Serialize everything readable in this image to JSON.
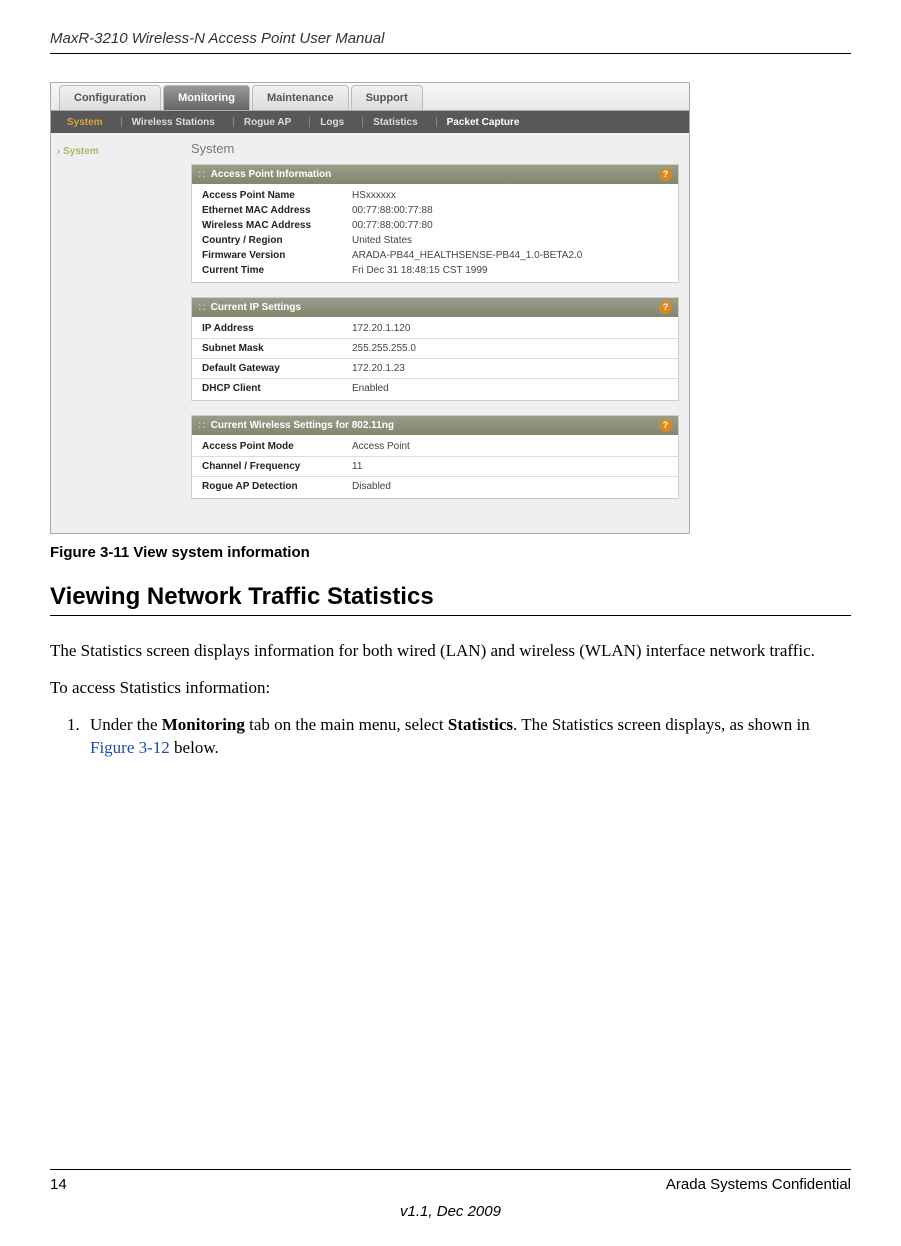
{
  "doc": {
    "header": "MaxR-3210 Wireless-N Access Point User Manual",
    "caption": "Figure 3-11  View system information",
    "h2": "Viewing Network Traffic Statistics",
    "para1": "The Statistics screen displays information for both wired (LAN) and wireless (WLAN) interface network traffic.",
    "para2": "To access Statistics information:",
    "step1_pre": "Under the ",
    "step1_b1": "Monitoring",
    "step1_mid": " tab on the main menu, select ",
    "step1_b2": "Statistics",
    "step1_post": ". The Statistics screen displays, as shown in ",
    "step1_link": "Figure 3-12",
    "step1_end": " below.",
    "page_num": "14",
    "conf": "Arada Systems Confidential",
    "version": "v1.1, Dec 2009"
  },
  "ui": {
    "tabs": {
      "t1": "Configuration",
      "t2": "Monitoring",
      "t3": "Maintenance",
      "t4": "Support"
    },
    "subtabs": {
      "s1": "System",
      "s2": "Wireless Stations",
      "s3": "Rogue AP",
      "s4": "Logs",
      "s5": "Statistics",
      "s6": "Packet Capture"
    },
    "side": "System",
    "panel_title": "System",
    "block1": {
      "title": "Access Point Information",
      "r1k": "Access Point Name",
      "r1v": "HSxxxxxx",
      "r2k": "Ethernet MAC Address",
      "r2v": "00:77:88:00:77:88",
      "r3k": "Wireless MAC Address",
      "r3v": "00:77:88:00:77:80",
      "r4k": "Country / Region",
      "r4v": "United States",
      "r5k": "Firmware Version",
      "r5v": "ARADA-PB44_HEALTHSENSE-PB44_1.0-BETA2.0",
      "r6k": "Current Time",
      "r6v": "Fri Dec 31 18:48:15 CST 1999"
    },
    "block2": {
      "title": "Current IP Settings",
      "r1k": "IP Address",
      "r1v": "172.20.1.120",
      "r2k": "Subnet Mask",
      "r2v": "255.255.255.0",
      "r3k": "Default Gateway",
      "r3v": "172.20.1.23",
      "r4k": "DHCP Client",
      "r4v": "Enabled"
    },
    "block3": {
      "title": "Current Wireless Settings for 802.11ng",
      "r1k": "Access Point Mode",
      "r1v": "Access Point",
      "r2k": "Channel / Frequency",
      "r2v": "11",
      "r3k": "Rogue AP Detection",
      "r3v": "Disabled"
    }
  }
}
